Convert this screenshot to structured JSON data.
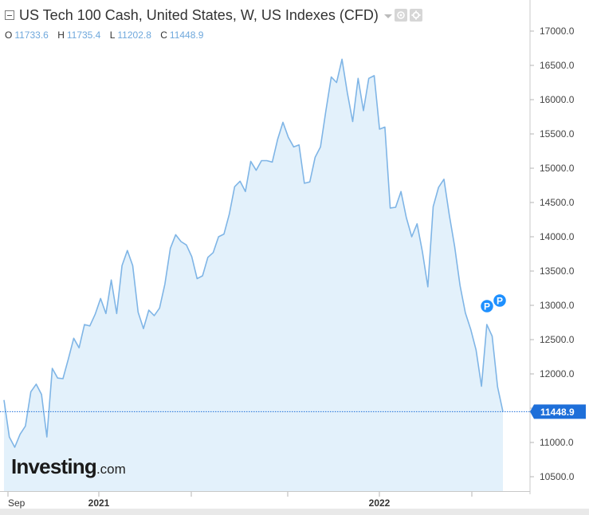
{
  "header": {
    "title": "US Tech 100 Cash, United States, W, US Indexes (CFD)",
    "ohlc": [
      {
        "key": "O",
        "value": "11733.6"
      },
      {
        "key": "H",
        "value": "11735.4"
      },
      {
        "key": "L",
        "value": "11202.8"
      },
      {
        "key": "C",
        "value": "11448.9"
      }
    ]
  },
  "logo": {
    "brand": "Investing",
    "suffix": ".com"
  },
  "colors": {
    "line": "#7fb5e6",
    "fill": "#e3f1fb",
    "price_tag": "#1e6fd9",
    "pin": "#1e90ff"
  },
  "pins": [
    {
      "label": "P"
    },
    {
      "label": "P"
    }
  ],
  "chart_data": {
    "type": "area",
    "ylim": [
      10300,
      17200
    ],
    "y_ticks": [
      "17000.0",
      "16500.0",
      "16000.0",
      "15500.0",
      "15000.0",
      "14500.0",
      "14000.0",
      "13500.0",
      "13000.0",
      "12500.0",
      "12000.0",
      "11500.0",
      "11000.0",
      "10500.0"
    ],
    "x_tick_labels": [
      "Sep",
      "2021",
      "2022"
    ],
    "last_price": "11448.9",
    "series": [
      {
        "values": [
          11620,
          11080,
          10930,
          11120,
          11240,
          11740,
          11850,
          11700,
          11080,
          12080,
          11940,
          11930,
          12220,
          12520,
          12380,
          12720,
          12700,
          12870,
          13100,
          12880,
          13370,
          12880,
          13580,
          13800,
          13580,
          12900,
          12660,
          12930,
          12850,
          12960,
          13310,
          13830,
          14030,
          13930,
          13880,
          13710,
          13390,
          13430,
          13700,
          13770,
          14000,
          14040,
          14330,
          14730,
          14810,
          14660,
          15100,
          14970,
          15110,
          15110,
          15090,
          15420,
          15670,
          15450,
          15310,
          15340,
          14780,
          14800,
          15160,
          15310,
          15840,
          16330,
          16250,
          16590,
          16100,
          15680,
          16310,
          15840,
          16310,
          16350,
          15570,
          15600,
          14420,
          14430,
          14660,
          14280,
          14000,
          14190,
          13780,
          13270,
          14440,
          14720,
          14840,
          14320,
          13860,
          13290,
          12890,
          12650,
          12350,
          11820,
          12720,
          12550,
          11810,
          11448.9
        ]
      }
    ]
  }
}
